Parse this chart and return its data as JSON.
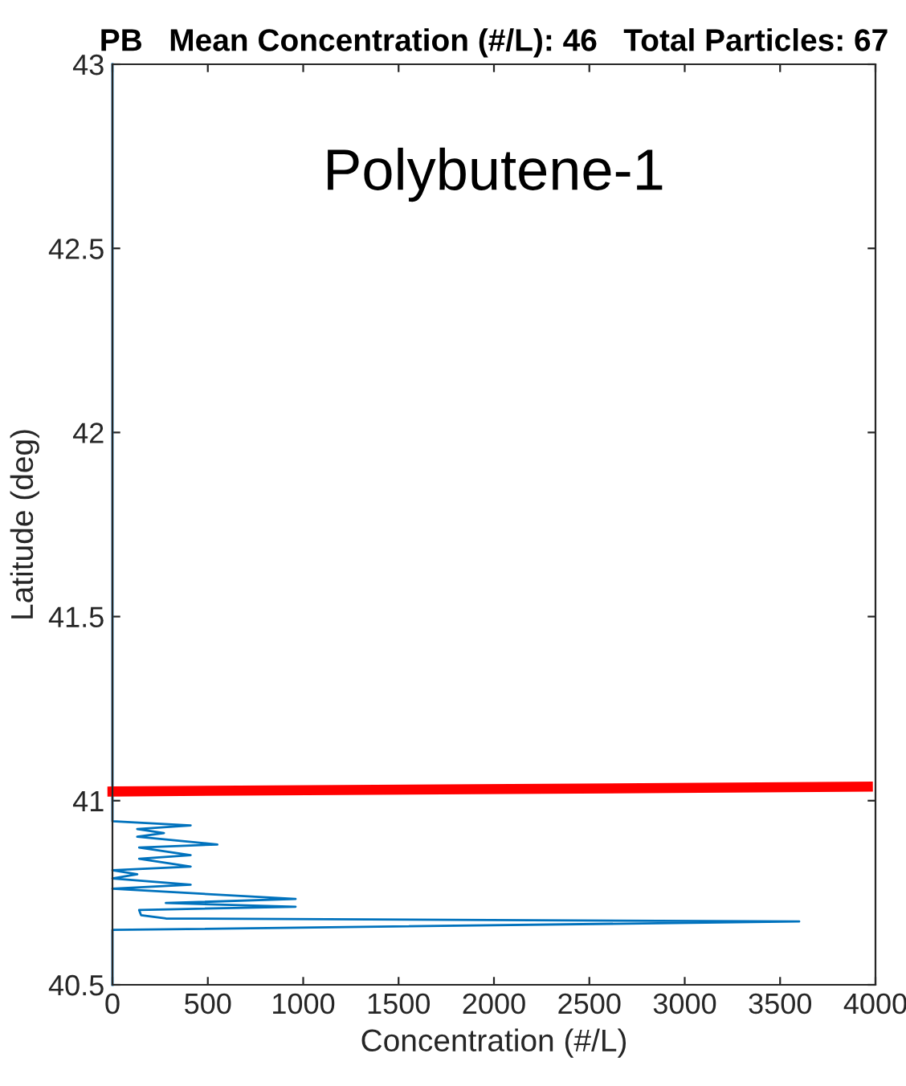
{
  "chart_data": {
    "type": "line",
    "title": "PB   Mean Concentration (#/L): 46   Total Particles: 67",
    "xlabel": "Concentration (#/L)",
    "ylabel": "Latitude (deg)",
    "annotations": [
      "Polybutene-1"
    ],
    "series": [
      {
        "color": "#0072bd",
        "x": [
          0,
          0,
          410,
          130,
          270,
          130,
          550,
          140,
          410,
          140,
          410,
          0,
          130,
          0,
          410,
          0,
          960,
          280,
          960,
          140,
          150,
          280,
          3600,
          0,
          0
        ],
        "values": [
          43,
          40.944,
          40.933,
          40.923,
          40.912,
          40.902,
          40.881,
          40.873,
          40.852,
          40.842,
          40.821,
          40.811,
          40.8,
          40.789,
          40.772,
          40.761,
          40.733,
          40.722,
          40.712,
          40.703,
          40.689,
          40.68,
          40.672,
          40.649,
          40.5
        ]
      },
      {
        "color": "#ff0000",
        "x": [
          0,
          3960
        ],
        "values": [
          41.025,
          41.038
        ]
      }
    ],
    "xlim": [
      0,
      4000
    ],
    "xticks": [
      0,
      500,
      1000,
      1500,
      2000,
      2500,
      3000,
      3500,
      4000
    ],
    "ylim": [
      40.5,
      43
    ],
    "yticks": [
      40.5,
      41,
      41.5,
      42,
      42.5,
      43
    ],
    "grid": false,
    "legend": false
  }
}
